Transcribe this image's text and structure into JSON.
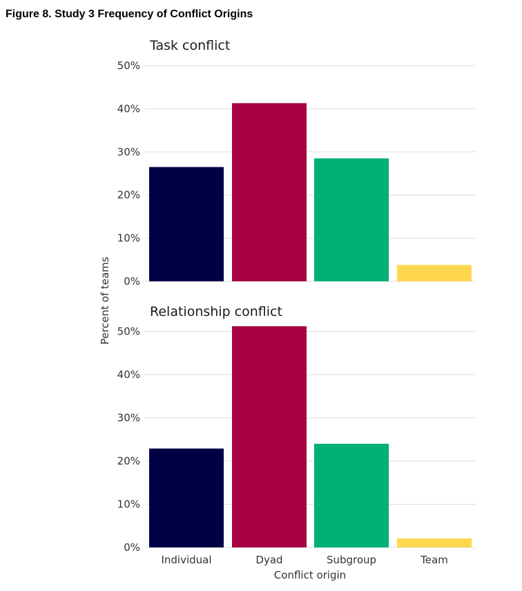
{
  "figure_title": "Figure 8.  Study 3 Frequency of Conflict Origins",
  "chart_data": {
    "type": "bar",
    "ylabel": "Percent of teams",
    "xlabel": "Conflict origin",
    "categories": [
      "Individual",
      "Dyad",
      "Subgroup",
      "Team"
    ],
    "colors": [
      "#000046",
      "#a80043",
      "#00b074",
      "#ffd74f"
    ],
    "grid": true,
    "legend": "none",
    "panels": [
      {
        "title": "Task conflict",
        "values": [
          26.5,
          41.3,
          28.5,
          3.8
        ],
        "ylim": [
          0,
          50
        ],
        "yticks": [
          0,
          10,
          20,
          30,
          40,
          50
        ],
        "ytick_labels": [
          "0%",
          "10%",
          "20%",
          "30%",
          "40%",
          "50%"
        ]
      },
      {
        "title": "Relationship conflict",
        "values": [
          22.9,
          51.2,
          24.0,
          2.1
        ],
        "ylim": [
          0,
          51.2
        ],
        "yticks": [
          0,
          10,
          20,
          30,
          40,
          50
        ],
        "ytick_labels": [
          "0%",
          "10%",
          "20%",
          "30%",
          "40%",
          "50%"
        ]
      }
    ]
  }
}
